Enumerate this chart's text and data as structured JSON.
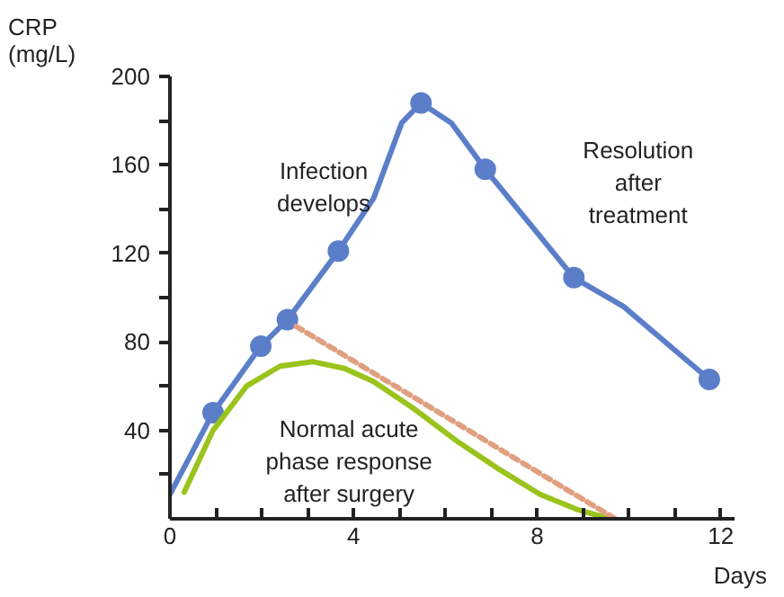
{
  "chart_data": {
    "type": "line",
    "xlabel": "Days",
    "ylabel": "CRP\n(mg/L)",
    "xlim": [
      0,
      12.3
    ],
    "ylim": [
      0,
      200
    ],
    "xticks": [
      0,
      {
        "value": 1,
        "label": null
      },
      {
        "value": 2,
        "label": null
      },
      {
        "value": 3,
        "label": null
      },
      4,
      {
        "value": 5,
        "label": null
      },
      {
        "value": 6,
        "label": null
      },
      {
        "value": 7,
        "label": null
      },
      8,
      {
        "value": 9,
        "label": null
      },
      {
        "value": 10,
        "label": null
      },
      {
        "value": 11,
        "label": null
      },
      12
    ],
    "yticks": [
      {
        "value": 20,
        "label": null
      },
      40,
      {
        "value": 60,
        "label": null
      },
      80,
      {
        "value": 100,
        "label": null
      },
      120,
      {
        "value": 140,
        "label": null
      },
      160,
      {
        "value": 180,
        "label": null
      },
      200
    ],
    "grid": false,
    "series": [
      {
        "color": "#5b7ec9",
        "marker": "none",
        "line_style": "solid",
        "x": [
          0,
          0.94,
          1.98,
          2.56,
          3.67,
          4.44,
          5.05,
          5.47,
          6.13,
          6.87,
          8.8,
          9.88,
          11.75
        ],
        "values": [
          11,
          48,
          78,
          90,
          121,
          145,
          179,
          188,
          179,
          158,
          109,
          96,
          63
        ]
      },
      {
        "type": "scatter",
        "color": "#5b7ec9",
        "marker": "circle",
        "x": [
          0.94,
          1.98,
          2.56,
          3.67,
          5.47,
          6.87,
          8.8,
          11.75
        ],
        "values": [
          48,
          78,
          90,
          121,
          188,
          158,
          109,
          63
        ]
      },
      {
        "color": "#9ac31c",
        "marker": "none",
        "line_style": "solid",
        "x": [
          0.31,
          0.94,
          1.67,
          2.4,
          3.12,
          3.8,
          4.44,
          5.3,
          6.26,
          7.2,
          8.07,
          8.9,
          9.58
        ],
        "values": [
          12,
          40,
          60,
          69,
          71,
          68,
          62,
          50,
          35,
          22,
          11,
          4,
          0
        ]
      },
      {
        "color": "#e0a080",
        "marker": "none",
        "line_style": "dashed",
        "x": [
          2.75,
          9.7
        ],
        "values": [
          87,
          0
        ]
      }
    ],
    "annotations": [
      "Infection\ndevelops",
      "Resolution\nafter\ntreatment",
      "Normal acute\nphase response\nafter surgery"
    ]
  }
}
